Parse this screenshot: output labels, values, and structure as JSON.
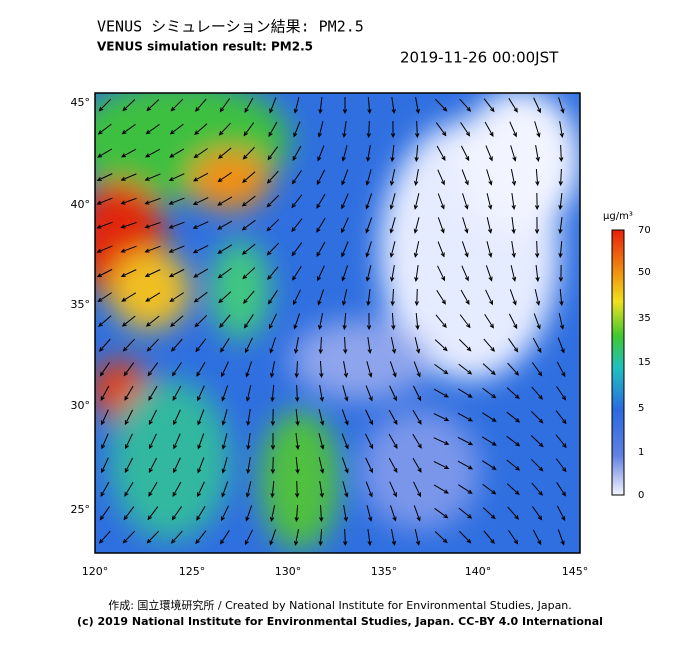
{
  "header": {
    "title_ja": "VENUS シミュレーション結果: PM2.5",
    "title_en": "VENUS simulation result: PM2.5",
    "timestamp": "2019-11-26 00:00JST"
  },
  "map": {
    "lat_labels": [
      "45°",
      "40°",
      "35°",
      "30°",
      "25°"
    ],
    "lon_labels": [
      "120°",
      "125°",
      "130°",
      "135°",
      "140°",
      "145°"
    ]
  },
  "colorbar": {
    "unit": "μg/m³",
    "labels": [
      "70",
      "50",
      "35",
      "15",
      "5",
      "1",
      "0"
    ]
  },
  "footer": {
    "credit": "作成: 国立環境研究所 / Created by National Institute for Environmental Studies, Japan.",
    "license": "(c) 2019 National Institute for Environmental Studies, Japan. CC-BY 4.0 International"
  }
}
